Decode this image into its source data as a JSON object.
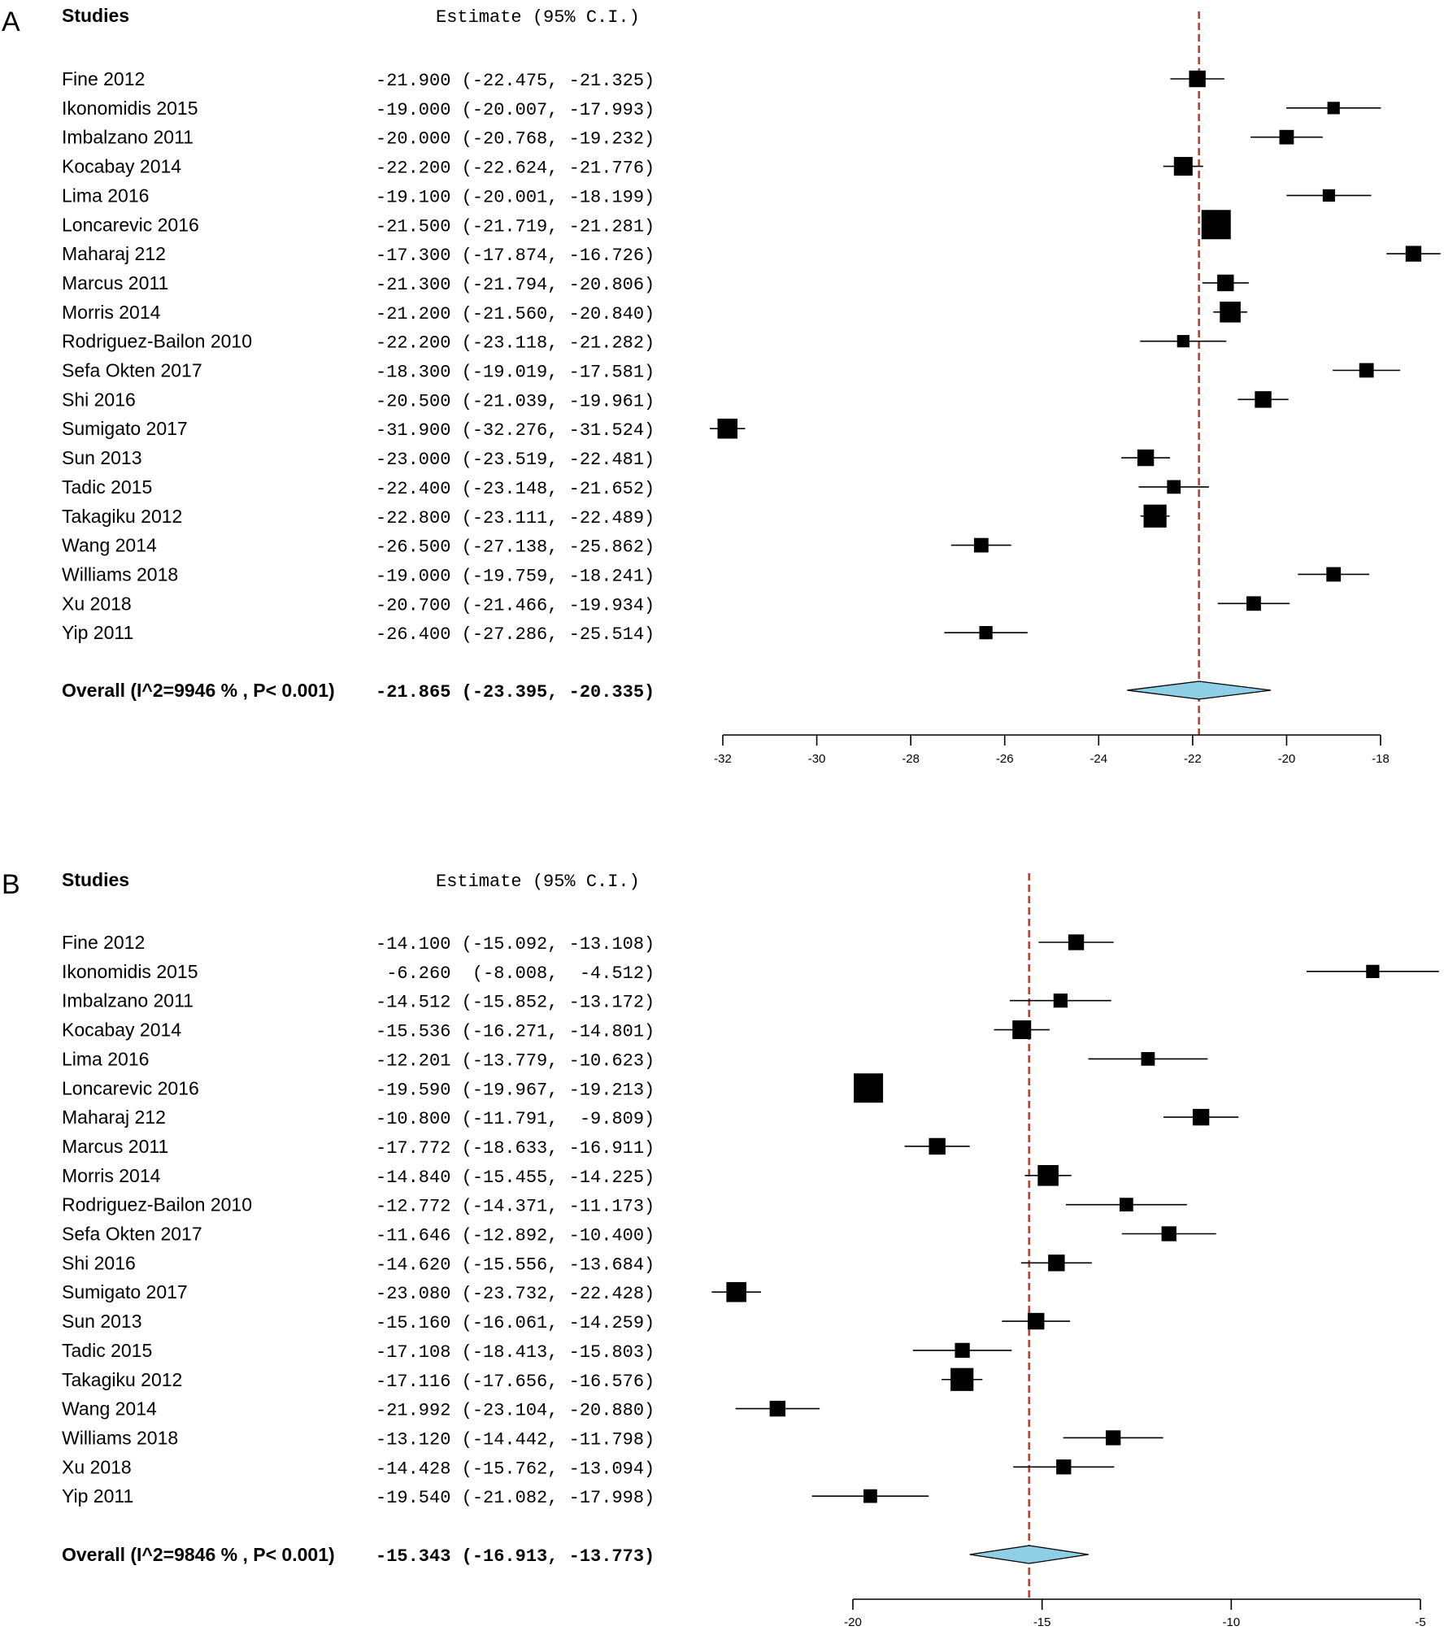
{
  "chart_data": [
    {
      "type": "forest",
      "panel_label": "A",
      "header_studies": "Studies",
      "header_estimate": "Estimate (95% C.I.)",
      "xlim": [
        -32,
        -18
      ],
      "ticks": [
        -32,
        -30,
        -28,
        -26,
        -24,
        -22,
        -20,
        -18
      ],
      "tick_labels": [
        "-32",
        "-30",
        "-28",
        "-26",
        "-24",
        "-22",
        "-20",
        "-18"
      ],
      "reference_line": -21.865,
      "reference_line_color": "#c0392b",
      "diamond_color": "#8ecfe6",
      "studies": [
        {
          "name": "Fine 2012",
          "estimate": -21.9,
          "lower": -22.475,
          "upper": -21.325,
          "est_text": "-21.900 (-22.475, -21.325)",
          "weight": 2
        },
        {
          "name": "Ikonomidis 2015",
          "estimate": -19.0,
          "lower": -20.007,
          "upper": -17.993,
          "est_text": "-19.000 (-20.007, -17.993)",
          "weight": 1
        },
        {
          "name": "Imbalzano 2011",
          "estimate": -20.0,
          "lower": -20.768,
          "upper": -19.232,
          "est_text": "-20.000 (-20.768, -19.232)",
          "weight": 1.5
        },
        {
          "name": "Kocabay 2014",
          "estimate": -22.2,
          "lower": -22.624,
          "upper": -21.776,
          "est_text": "-22.200 (-22.624, -21.776)",
          "weight": 2.5
        },
        {
          "name": "Lima 2016",
          "estimate": -19.1,
          "lower": -20.001,
          "upper": -18.199,
          "est_text": "-19.100 (-20.001, -18.199)",
          "weight": 1
        },
        {
          "name": "Loncarevic 2016",
          "estimate": -21.5,
          "lower": -21.719,
          "upper": -21.281,
          "est_text": "-21.500 (-21.719, -21.281)",
          "weight": 5
        },
        {
          "name": "Maharaj 212",
          "estimate": -17.3,
          "lower": -17.874,
          "upper": -16.726,
          "est_text": "-17.300 (-17.874, -16.726)",
          "weight": 1.8
        },
        {
          "name": "Marcus 2011",
          "estimate": -21.3,
          "lower": -21.794,
          "upper": -20.806,
          "est_text": "-21.300 (-21.794, -20.806)",
          "weight": 2
        },
        {
          "name": "Morris 2014",
          "estimate": -21.2,
          "lower": -21.56,
          "upper": -20.84,
          "est_text": "-21.200 (-21.560, -20.840)",
          "weight": 3
        },
        {
          "name": "Rodriguez-Bailon 2010",
          "estimate": -22.2,
          "lower": -23.118,
          "upper": -21.282,
          "est_text": "-22.200 (-23.118, -21.282)",
          "weight": 1
        },
        {
          "name": "Sefa Okten 2017",
          "estimate": -18.3,
          "lower": -19.019,
          "upper": -17.581,
          "est_text": "-18.300 (-19.019, -17.581)",
          "weight": 1.5
        },
        {
          "name": "Shi 2016",
          "estimate": -20.5,
          "lower": -21.039,
          "upper": -19.961,
          "est_text": "-20.500 (-21.039, -19.961)",
          "weight": 2
        },
        {
          "name": "Sumigato 2017",
          "estimate": -31.9,
          "lower": -32.276,
          "upper": -31.524,
          "est_text": "-31.900 (-32.276, -31.524)",
          "weight": 2.8
        },
        {
          "name": "Sun 2013",
          "estimate": -23.0,
          "lower": -23.519,
          "upper": -22.481,
          "est_text": "-23.000 (-23.519, -22.481)",
          "weight": 2
        },
        {
          "name": "Tadic 2015",
          "estimate": -22.4,
          "lower": -23.148,
          "upper": -21.652,
          "est_text": "-22.400 (-23.148, -21.652)",
          "weight": 1.3
        },
        {
          "name": "Takagiku 2012",
          "estimate": -22.8,
          "lower": -23.111,
          "upper": -22.489,
          "est_text": "-22.800 (-23.111, -22.489)",
          "weight": 3.5
        },
        {
          "name": "Wang 2014",
          "estimate": -26.5,
          "lower": -27.138,
          "upper": -25.862,
          "est_text": "-26.500 (-27.138, -25.862)",
          "weight": 1.5
        },
        {
          "name": "Williams 2018",
          "estimate": -19.0,
          "lower": -19.759,
          "upper": -18.241,
          "est_text": "-19.000 (-19.759, -18.241)",
          "weight": 1.5
        },
        {
          "name": "Xu 2018",
          "estimate": -20.7,
          "lower": -21.466,
          "upper": -19.934,
          "est_text": "-20.700 (-21.466, -19.934)",
          "weight": 1.5
        },
        {
          "name": "Yip 2011",
          "estimate": -26.4,
          "lower": -27.286,
          "upper": -25.514,
          "est_text": "-26.400 (-27.286, -25.514)",
          "weight": 1.2
        }
      ],
      "overall": {
        "name": "Overall (I^2=9946 % , P< 0.001)",
        "estimate": -21.865,
        "lower": -23.395,
        "upper": -20.335,
        "est_text": "-21.865 (-23.395, -20.335)"
      }
    },
    {
      "type": "forest",
      "panel_label": "B",
      "header_studies": "Studies",
      "header_estimate": "Estimate (95% C.I.)",
      "xlim": [
        -20,
        -5
      ],
      "ticks": [
        -20,
        -15,
        -10,
        -5
      ],
      "tick_labels": [
        "-20",
        "-15",
        "-10",
        "-5"
      ],
      "reference_line": -15.343,
      "reference_line_color": "#c0392b",
      "diamond_color": "#8ecfe6",
      "studies": [
        {
          "name": "Fine 2012",
          "estimate": -14.1,
          "lower": -15.092,
          "upper": -13.108,
          "est_text": "-14.100 (-15.092, -13.108)",
          "weight": 1.8
        },
        {
          "name": "Ikonomidis 2015",
          "estimate": -6.26,
          "lower": -8.008,
          "upper": -4.512,
          "est_text": " -6.260  (-8.008,  -4.512)",
          "weight": 1.2
        },
        {
          "name": "Imbalzano 2011",
          "estimate": -14.512,
          "lower": -15.852,
          "upper": -13.172,
          "est_text": "-14.512 (-15.852, -13.172)",
          "weight": 1.4
        },
        {
          "name": "Kocabay 2014",
          "estimate": -15.536,
          "lower": -16.271,
          "upper": -14.801,
          "est_text": "-15.536 (-16.271, -14.801)",
          "weight": 2.5
        },
        {
          "name": "Lima 2016",
          "estimate": -12.201,
          "lower": -13.779,
          "upper": -10.623,
          "est_text": "-12.201 (-13.779, -10.623)",
          "weight": 1.3
        },
        {
          "name": "Loncarevic 2016",
          "estimate": -19.59,
          "lower": -19.967,
          "upper": -19.213,
          "est_text": "-19.590 (-19.967, -19.213)",
          "weight": 5
        },
        {
          "name": "Maharaj 212",
          "estimate": -10.8,
          "lower": -11.791,
          "upper": -9.809,
          "est_text": "-10.800 (-11.791,  -9.809)",
          "weight": 2
        },
        {
          "name": "Marcus 2011",
          "estimate": -17.772,
          "lower": -18.633,
          "upper": -16.911,
          "est_text": "-17.772 (-18.633, -16.911)",
          "weight": 2
        },
        {
          "name": "Morris 2014",
          "estimate": -14.84,
          "lower": -15.455,
          "upper": -14.225,
          "est_text": "-14.840 (-15.455, -14.225)",
          "weight": 3
        },
        {
          "name": "Rodriguez-Bailon 2010",
          "estimate": -12.772,
          "lower": -14.371,
          "upper": -11.173,
          "est_text": "-12.772 (-14.371, -11.173)",
          "weight": 1.3
        },
        {
          "name": "Sefa Okten 2017",
          "estimate": -11.646,
          "lower": -12.892,
          "upper": -10.4,
          "est_text": "-11.646 (-12.892, -10.400)",
          "weight": 1.6
        },
        {
          "name": "Shi 2016",
          "estimate": -14.62,
          "lower": -15.556,
          "upper": -13.684,
          "est_text": "-14.620 (-15.556, -13.684)",
          "weight": 2
        },
        {
          "name": "Sumigato 2017",
          "estimate": -23.08,
          "lower": -23.732,
          "upper": -22.428,
          "est_text": "-23.080 (-23.732, -22.428)",
          "weight": 2.8
        },
        {
          "name": "Sun 2013",
          "estimate": -15.16,
          "lower": -16.061,
          "upper": -14.259,
          "est_text": "-15.160 (-16.061, -14.259)",
          "weight": 2
        },
        {
          "name": "Tadic 2015",
          "estimate": -17.108,
          "lower": -18.413,
          "upper": -15.803,
          "est_text": "-17.108 (-18.413, -15.803)",
          "weight": 1.6
        },
        {
          "name": "Takagiku 2012",
          "estimate": -17.116,
          "lower": -17.656,
          "upper": -16.576,
          "est_text": "-17.116 (-17.656, -16.576)",
          "weight": 3.5
        },
        {
          "name": "Wang 2014",
          "estimate": -21.992,
          "lower": -23.104,
          "upper": -20.88,
          "est_text": "-21.992 (-23.104, -20.880)",
          "weight": 1.8
        },
        {
          "name": "Williams 2018",
          "estimate": -13.12,
          "lower": -14.442,
          "upper": -11.798,
          "est_text": "-13.120 (-14.442, -11.798)",
          "weight": 1.6
        },
        {
          "name": "Xu 2018",
          "estimate": -14.428,
          "lower": -15.762,
          "upper": -13.094,
          "est_text": "-14.428 (-15.762, -13.094)",
          "weight": 1.6
        },
        {
          "name": "Yip 2011",
          "estimate": -19.54,
          "lower": -21.082,
          "upper": -17.998,
          "est_text": "-19.540 (-21.082, -17.998)",
          "weight": 1.3
        }
      ],
      "overall": {
        "name": "Overall (I^2=9846 % , P< 0.001)",
        "estimate": -15.343,
        "lower": -16.913,
        "upper": -13.773,
        "est_text": "-15.343 (-16.913, -13.773)"
      }
    }
  ]
}
